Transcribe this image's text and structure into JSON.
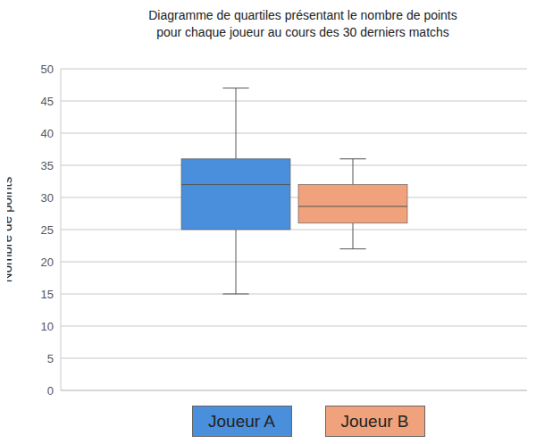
{
  "chart_data": {
    "type": "box",
    "title": "Diagramme de quartiles présentant le nombre de points\npour chaque joueur au cours des 30 derniers matchs",
    "y_label": "Nombre de points",
    "categories": [
      "Joueur A",
      "Joueur B"
    ],
    "series": [
      {
        "name": "Joueur A",
        "color": "#4a8fdb",
        "min": 15,
        "q1": 25,
        "median": 32,
        "q3": 36,
        "max": 47
      },
      {
        "name": "Joueur B",
        "color": "#f0a27c",
        "min": 22,
        "q1": 26,
        "median": 28.6,
        "q3": 32,
        "max": 36
      }
    ],
    "ylim": [
      0,
      50
    ],
    "yticks": [
      0,
      5,
      10,
      15,
      20,
      25,
      30,
      35,
      40,
      45,
      50
    ],
    "grid": true,
    "legend": "bottom",
    "tick_labels": "y"
  }
}
